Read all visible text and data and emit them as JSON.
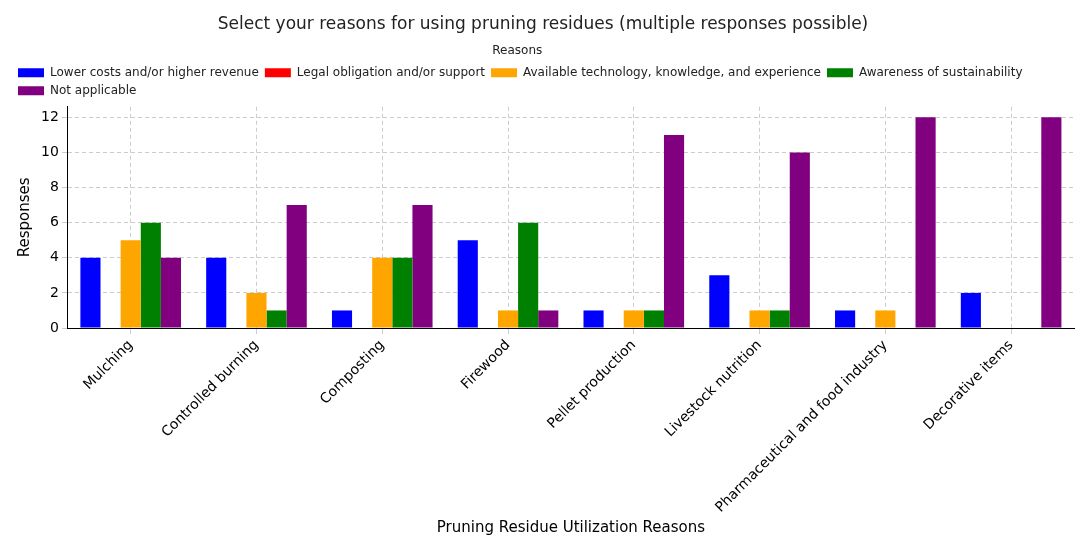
{
  "chart_data": {
    "type": "bar",
    "title": "Select your reasons for using pruning residues (multiple responses possible)",
    "xlabel": "Pruning Residue Utilization Reasons",
    "ylabel": "Responses",
    "legend_title": "Reasons",
    "categories": [
      "Mulching",
      "Controlled burning",
      "Composting",
      "Firewood",
      "Pellet production",
      "Livestock nutrition",
      "Pharmaceutical and food industry",
      "Decorative items"
    ],
    "series": [
      {
        "name": "Lower costs and/or higher revenue",
        "color": "#0000ff",
        "values": [
          4,
          4,
          1,
          5,
          1,
          3,
          1,
          2
        ]
      },
      {
        "name": "Legal obligation and/or support",
        "color": "#ff0000",
        "values": [
          0,
          0,
          0,
          0,
          0,
          0,
          0,
          0
        ]
      },
      {
        "name": "Available technology, knowledge, and experience",
        "color": "#ffa500",
        "values": [
          5,
          2,
          4,
          1,
          1,
          1,
          1,
          0
        ]
      },
      {
        "name": "Awareness of sustainability",
        "color": "#008000",
        "values": [
          6,
          1,
          4,
          6,
          1,
          1,
          0,
          0
        ]
      },
      {
        "name": "Not applicable",
        "color": "#800080",
        "values": [
          4,
          7,
          7,
          1,
          11,
          10,
          12,
          12
        ]
      }
    ],
    "ylim": [
      0,
      12.6
    ],
    "yticks": [
      0,
      2,
      4,
      6,
      8,
      10,
      12
    ],
    "grid": true,
    "legend": "top left"
  }
}
